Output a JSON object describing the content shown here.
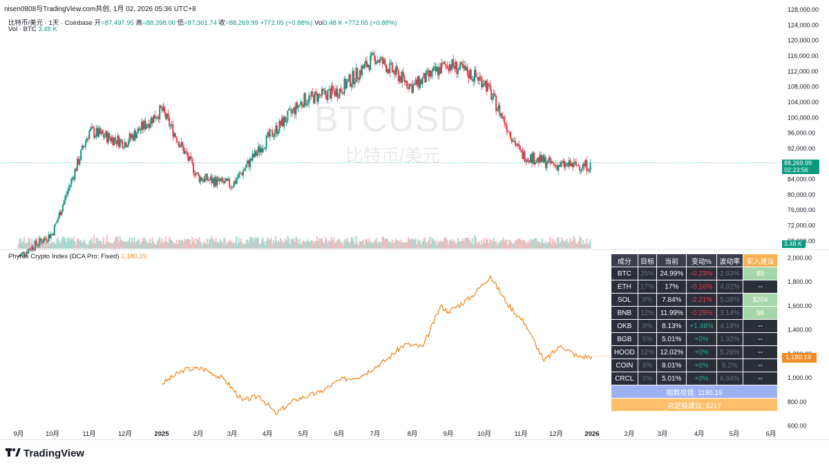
{
  "header": {
    "attribution": "nisen0808与TradingView.com共创, 1月 02, 2026 05:36 UTC+8"
  },
  "legend": {
    "symbol": "比特币/美元 · 1天 · Coinbase",
    "open_label": "开",
    "open": "=87,497.95",
    "high_label": "高",
    "high": "=88,398.00",
    "low_label": "低",
    "low": "=87,361.74",
    "close_label": "收",
    "close": "=88,269.99",
    "change": "+772.05 (+0.88%)",
    "vol_label": "Vol",
    "vol": "3.48 K",
    "vol_change": "+772.05 (+0.88%)",
    "vol_pane_label": "Vol · BTC",
    "vol_pane_value": "3.48 K",
    "indicator_label": "Phyrex Crypto Index (DCA Pro: Fixed)",
    "indicator_value": "1,180.19"
  },
  "watermark": {
    "ticker": "BTCUSD",
    "name": "比特币/美元"
  },
  "price_tag": {
    "price": "88,269.99",
    "countdown": "02:23:56"
  },
  "vol_tag": "3.48 K",
  "index_tag": "1,180.19",
  "table": {
    "headers": [
      "成分",
      "目标",
      "当前",
      "变动%",
      "波动率",
      "买入建议"
    ],
    "rows": [
      {
        "name": "BTC",
        "target": "25%",
        "current": "24.99%",
        "change": "-0.23%",
        "vol": "2.93%",
        "buy": "$5",
        "dir": "neg",
        "has_buy": true
      },
      {
        "name": "ETH",
        "target": "17%",
        "current": "17%",
        "change": "-0.16%",
        "vol": "4.02%",
        "buy": "--",
        "dir": "neg",
        "has_buy": false
      },
      {
        "name": "SOL",
        "target": "8%",
        "current": "7.84%",
        "change": "-2.21%",
        "vol": "5.08%",
        "buy": "$204",
        "dir": "neg",
        "has_buy": true
      },
      {
        "name": "BNB",
        "target": "12%",
        "current": "11.99%",
        "change": "-0.25%",
        "vol": "3.14%",
        "buy": "$8",
        "dir": "neg",
        "has_buy": true
      },
      {
        "name": "OKB",
        "target": "8%",
        "current": "8.13%",
        "change": "+1.48%",
        "vol": "4.18%",
        "buy": "--",
        "dir": "pos",
        "has_buy": false
      },
      {
        "name": "BGB",
        "target": "5%",
        "current": "5.01%",
        "change": "+0%",
        "vol": "1.92%",
        "buy": "--",
        "dir": "pos",
        "has_buy": false
      },
      {
        "name": "HOOD",
        "target": "12%",
        "current": "12.02%",
        "change": "+0%",
        "vol": "5.28%",
        "buy": "--",
        "dir": "pos",
        "has_buy": false
      },
      {
        "name": "COIN",
        "target": "8%",
        "current": "8.01%",
        "change": "+0%",
        "vol": "5.2%",
        "buy": "--",
        "dir": "pos",
        "has_buy": false
      },
      {
        "name": "CRCL",
        "target": "5%",
        "current": "5.01%",
        "change": "+0%",
        "vol": "6.94%",
        "buy": "--",
        "dir": "pos",
        "has_buy": false
      }
    ],
    "index_now": "指数现值: 1180.19",
    "total_dca": "总定投建议: $217"
  },
  "footer": {
    "logo_text": "TradingView"
  },
  "colors": {
    "up": "#089981",
    "down": "#f23645",
    "up_vol": "#a6d9d0",
    "down_vol": "#f7b9bd",
    "index_line": "#f08a24",
    "last_price_line": "#089981"
  },
  "chart_data": [
    {
      "type": "candlestick",
      "title": "BTCUSD",
      "subtitle": "比特币/美元",
      "x_tick_labels": [
        "9月",
        "10月",
        "11月",
        "12月",
        "2025",
        "2月",
        "3月",
        "4月",
        "5月",
        "6月",
        "7月",
        "8月",
        "9月",
        "10月",
        "11月",
        "12月",
        "2026",
        "2月",
        "3月",
        "4月",
        "5月",
        "6月"
      ],
      "y_tick_labels": [
        "128,000.00",
        "124,000.00",
        "120,000.00",
        "116,000.00",
        "112,000.00",
        "108,000.00",
        "104,000.00",
        "100,000.00",
        "96,000.00",
        "92,000.00",
        "84,000.00",
        "80,000.00",
        "76,000.00",
        "72,000.00",
        "68,000.00"
      ],
      "ylim": [
        66000,
        128000
      ],
      "last_price": 88269.99,
      "approx_monthly_closes": [
        {
          "month": "2024-09",
          "close": 64000
        },
        {
          "month": "2024-10",
          "close": 70000
        },
        {
          "month": "2024-11",
          "close": 96500
        },
        {
          "month": "2024-12",
          "close": 93500
        },
        {
          "month": "2025-01",
          "close": 102000
        },
        {
          "month": "2025-02",
          "close": 84500
        },
        {
          "month": "2025-03",
          "close": 82500
        },
        {
          "month": "2025-04",
          "close": 94500
        },
        {
          "month": "2025-05",
          "close": 104500
        },
        {
          "month": "2025-06",
          "close": 107000
        },
        {
          "month": "2025-07",
          "close": 115700
        },
        {
          "month": "2025-08",
          "close": 108000
        },
        {
          "month": "2025-09",
          "close": 114000
        },
        {
          "month": "2025-10",
          "close": 109500
        },
        {
          "month": "2025-11",
          "close": 90500
        },
        {
          "month": "2025-12",
          "close": 87600
        }
      ]
    },
    {
      "type": "line",
      "title": "Phyrex Crypto Index (DCA Pro: Fixed)",
      "y_tick_labels": [
        "2,000.00",
        "1,800.00",
        "1,600.00",
        "1,400.00",
        "1,200.00",
        "1,000.00",
        "800.00",
        "600.00"
      ],
      "ylim": [
        580,
        2060
      ],
      "last_value": 1180.19,
      "approx_points": [
        {
          "date": "2025-01-01",
          "value": 950
        },
        {
          "date": "2025-01-20",
          "value": 1070
        },
        {
          "date": "2025-02-05",
          "value": 1080
        },
        {
          "date": "2025-02-25",
          "value": 985
        },
        {
          "date": "2025-03-10",
          "value": 810
        },
        {
          "date": "2025-03-25",
          "value": 850
        },
        {
          "date": "2025-04-08",
          "value": 700
        },
        {
          "date": "2025-04-25",
          "value": 820
        },
        {
          "date": "2025-05-15",
          "value": 880
        },
        {
          "date": "2025-06-01",
          "value": 980
        },
        {
          "date": "2025-06-20",
          "value": 1020
        },
        {
          "date": "2025-07-10",
          "value": 1150
        },
        {
          "date": "2025-07-25",
          "value": 1280
        },
        {
          "date": "2025-08-10",
          "value": 1260
        },
        {
          "date": "2025-08-25",
          "value": 1600
        },
        {
          "date": "2025-09-01",
          "value": 1550
        },
        {
          "date": "2025-09-20",
          "value": 1670
        },
        {
          "date": "2025-10-06",
          "value": 1850
        },
        {
          "date": "2025-10-20",
          "value": 1620
        },
        {
          "date": "2025-11-05",
          "value": 1450
        },
        {
          "date": "2025-11-21",
          "value": 1140
        },
        {
          "date": "2025-12-05",
          "value": 1270
        },
        {
          "date": "2025-12-20",
          "value": 1175
        },
        {
          "date": "2026-01-01",
          "value": 1180
        }
      ]
    }
  ]
}
